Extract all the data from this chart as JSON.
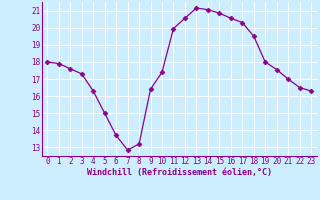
{
  "x": [
    0,
    1,
    2,
    3,
    4,
    5,
    6,
    7,
    8,
    9,
    10,
    11,
    12,
    13,
    14,
    15,
    16,
    17,
    18,
    19,
    20,
    21,
    22,
    23
  ],
  "y": [
    18.0,
    17.9,
    17.6,
    17.3,
    16.3,
    15.0,
    13.7,
    12.85,
    13.2,
    16.4,
    17.4,
    19.95,
    20.55,
    21.15,
    21.05,
    20.85,
    20.55,
    20.3,
    19.5,
    18.0,
    17.55,
    17.0,
    16.5,
    16.3
  ],
  "line_color": "#8b008b",
  "marker": "D",
  "marker_size": 2.5,
  "bg_color": "#cceeff",
  "grid_color": "#ffffff",
  "xlabel": "Windchill (Refroidissement éolien,°C)",
  "xlabel_color": "#8b008b",
  "tick_color": "#8b008b",
  "ylim": [
    12.5,
    21.5
  ],
  "xlim": [
    -0.5,
    23.5
  ],
  "yticks": [
    13,
    14,
    15,
    16,
    17,
    18,
    19,
    20,
    21
  ],
  "xticks": [
    0,
    1,
    2,
    3,
    4,
    5,
    6,
    7,
    8,
    9,
    10,
    11,
    12,
    13,
    14,
    15,
    16,
    17,
    18,
    19,
    20,
    21,
    22,
    23
  ],
  "tick_fontsize": 5.5,
  "xlabel_fontsize": 6.0
}
